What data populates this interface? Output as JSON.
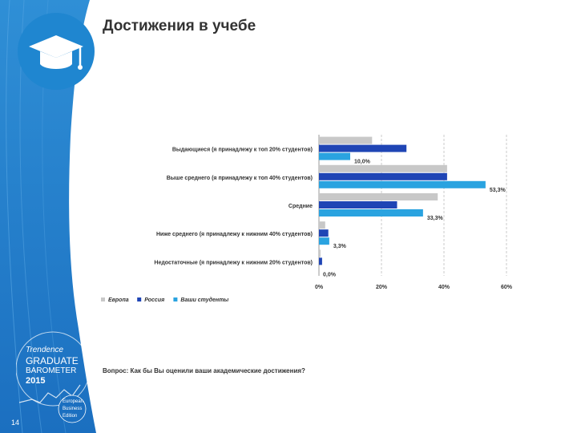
{
  "slide": {
    "title": "Достижения в учебе",
    "page_number": "14",
    "question": "Вопрос: Как бы Вы оценили ваши академические достижения?"
  },
  "icons": {
    "main": "graduation-cap-icon"
  },
  "barometer_logo": {
    "line1": "Trendence",
    "line2": "GRADUATE",
    "line3": "BAROMETER",
    "year": "2015",
    "edition": [
      "European",
      "Business",
      "Edition"
    ]
  },
  "colors": {
    "brand_blue": "#1f86d0",
    "europe": "#c8c8c8",
    "russia": "#1f45b5",
    "your_students": "#2aa3e0"
  },
  "chart_data": {
    "type": "bar",
    "orientation": "horizontal",
    "categories": [
      "Выдающиеся (я принадлежу к топ 20% студентов)",
      "Выше среднего (я принадлежу к топ 40% студентов)",
      "Средние",
      "Ниже среднего (я принадлежу к нижним 40% студентов)",
      "Недостаточные (я принадлежу к нижним 20% студентов)"
    ],
    "series": [
      {
        "name": "Европа",
        "values": [
          17,
          41,
          38,
          2,
          0.5
        ],
        "color": "#c8c8c8"
      },
      {
        "name": "Россия",
        "values": [
          28,
          41,
          25,
          3,
          1
        ],
        "color": "#1f45b5"
      },
      {
        "name": "Ваши студенты",
        "values": [
          10.0,
          53.3,
          33.3,
          3.3,
          0.0
        ],
        "color": "#2aa3e0"
      }
    ],
    "data_labels": {
      "series": "Ваши студенты",
      "labels": [
        "10,0%",
        "53,3%",
        "33,3%",
        "3,3%",
        "0,0%"
      ]
    },
    "xlim": [
      0,
      60
    ],
    "xticks": [
      "0%",
      "20%",
      "40%",
      "60%"
    ],
    "grid": true,
    "legend_position": "bottom-left"
  }
}
